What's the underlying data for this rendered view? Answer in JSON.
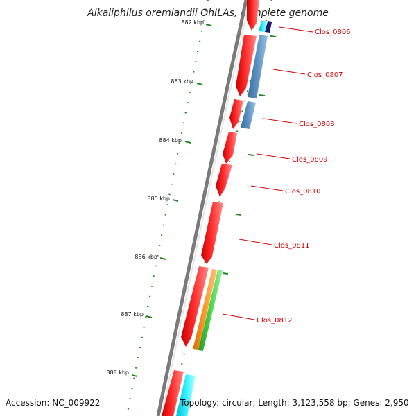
{
  "title": "Alkaliphilus oremlandii OhILAs, complete genome",
  "footer": {
    "accession": "Accession: NC_009922",
    "summary": "Topology: circular; Length: 3,123,558 bp; Genes: 2,950"
  },
  "positions_kbp": [
    "882 kbp",
    "883 kbp",
    "884 kbp",
    "885 kbp",
    "886 kbp",
    "887 kbp",
    "888 kbp"
  ],
  "genes": [
    "Clos_0806",
    "Clos_0807",
    "Clos_0808",
    "Clos_0809",
    "Clos_0810",
    "Clos_0811",
    "Clos_0812"
  ],
  "colors": {
    "forward_cds": "#ff1a1a",
    "backbone": "#7a7a7a",
    "tick_green": "#1f8a1f",
    "label_red": "#d40000",
    "steel_blue": "#4f86b8",
    "cyan": "#00e5ee",
    "navy": "#1b1b6e",
    "orange": "#ff8c1a",
    "green": "#3cc23c"
  }
}
